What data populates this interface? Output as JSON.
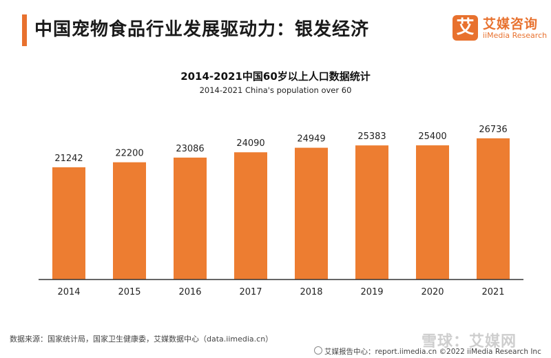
{
  "header": {
    "title": "中国宠物食品行业发展驱动力：银发经济",
    "accent_color": "#e8712e"
  },
  "logo": {
    "mark": "艾",
    "name_cn": "艾媒咨询",
    "name_en": "iiMedia Research"
  },
  "chart_data": {
    "type": "bar",
    "title": "2014-2021中国60岁以上人口数据统计",
    "subtitle": "2014-2021 China's population over 60",
    "categories": [
      "2014",
      "2015",
      "2016",
      "2017",
      "2018",
      "2019",
      "2020",
      "2021"
    ],
    "values": [
      21242,
      22200,
      23086,
      24090,
      24949,
      25383,
      25400,
      26736
    ],
    "bar_color": "#ed7d31",
    "ylim": [
      0,
      27500
    ],
    "grid": false,
    "legend": "none"
  },
  "source": "数据来源：国家统计局，国家卫生健康委，艾媒数据中心（data.iimedia.cn）",
  "footer": "艾媒报告中心：report.iimedia.cn   ©2022  iiMedia Research  Inc",
  "watermark": "雪球：艾媒网"
}
